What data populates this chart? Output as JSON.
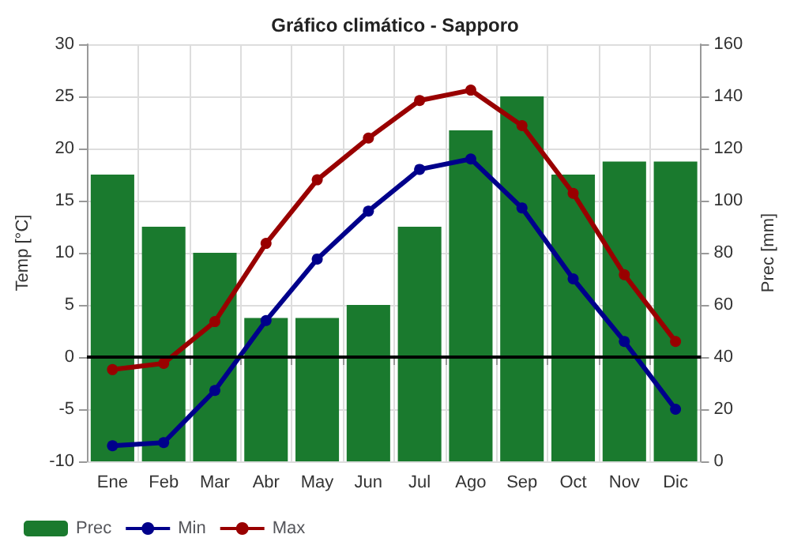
{
  "chart_data": {
    "type": "line",
    "title": "Gráfico climático - Sapporo",
    "ylabel": "Temp [°C]",
    "y2label": "Prec [mm]",
    "categories": [
      "Ene",
      "Feb",
      "Mar",
      "Abr",
      "May",
      "Jun",
      "Jul",
      "Ago",
      "Sep",
      "Oct",
      "Nov",
      "Dic"
    ],
    "series": [
      {
        "name": "Prec",
        "type": "bar",
        "axis": "y2",
        "color": "#1a7a2e",
        "values": [
          110,
          90,
          80,
          55,
          55,
          60,
          90,
          127,
          140,
          110,
          115,
          115
        ]
      },
      {
        "name": "Min",
        "color": "#00008b",
        "values": [
          -8.5,
          -8.2,
          -3.2,
          3.5,
          9.4,
          14,
          18,
          19,
          14.3,
          7.5,
          1.5,
          -5
        ]
      },
      {
        "name": "Max",
        "color": "#990000",
        "values": [
          -1.2,
          -0.6,
          3.4,
          10.9,
          17,
          21,
          24.6,
          25.6,
          22.2,
          15.7,
          7.9,
          1.5
        ]
      }
    ],
    "ylim": [
      -10,
      30
    ],
    "yticks": [
      -10,
      -5,
      0,
      5,
      10,
      15,
      20,
      25,
      30
    ],
    "y2lim": [
      0,
      160
    ],
    "y2ticks": [
      0,
      20,
      40,
      60,
      80,
      100,
      120,
      140,
      160
    ],
    "ref_lines": [
      {
        "axis": "y",
        "value": 0,
        "color": "#000000"
      }
    ],
    "grid": true,
    "legend": "bottom",
    "marker": "circle",
    "line_style": "solid"
  }
}
